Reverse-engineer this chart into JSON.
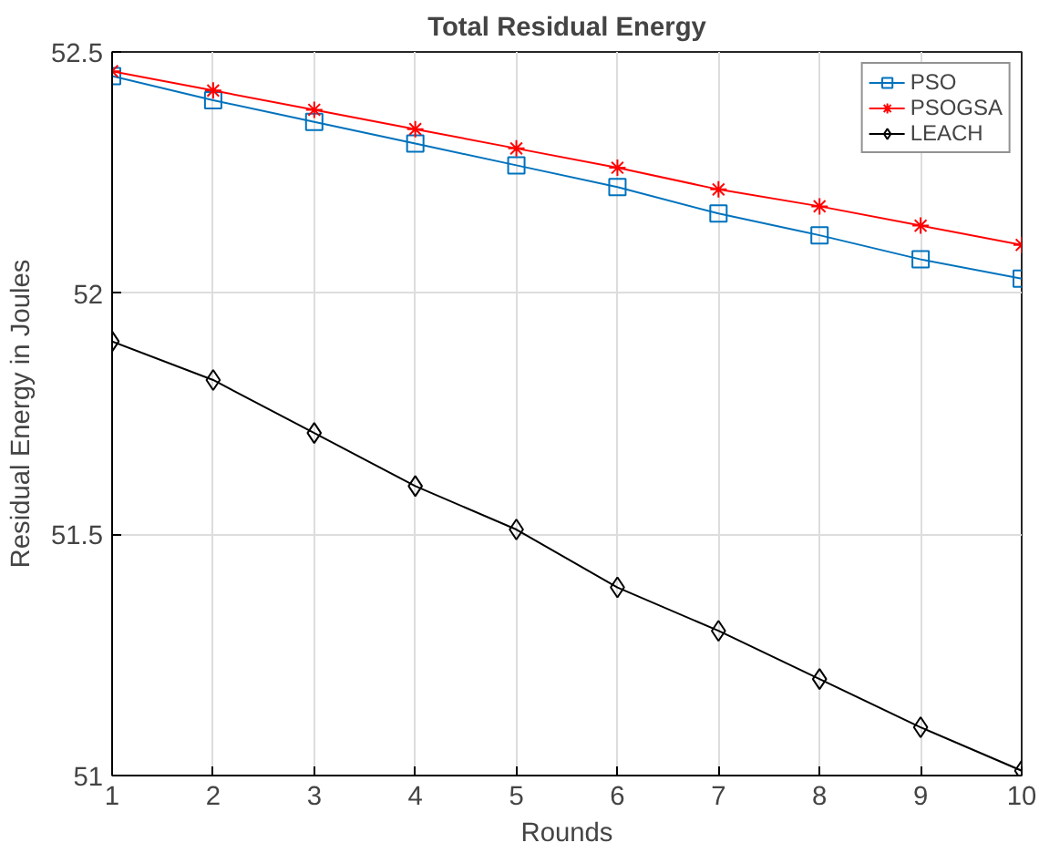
{
  "chart_data": {
    "type": "line",
    "title": "Total Residual Energy",
    "xlabel": "Rounds",
    "ylabel": "Residual Energy in Joules",
    "x": [
      1,
      2,
      3,
      4,
      5,
      6,
      7,
      8,
      9,
      10
    ],
    "series": [
      {
        "name": "PSO",
        "color": "#0072bd",
        "marker": "square",
        "values": [
          52.45,
          52.4,
          52.355,
          52.31,
          52.265,
          52.22,
          52.165,
          52.12,
          52.07,
          52.03
        ]
      },
      {
        "name": "PSOGSA",
        "color": "#ff0000",
        "marker": "cross",
        "values": [
          52.46,
          52.42,
          52.38,
          52.34,
          52.3,
          52.26,
          52.215,
          52.18,
          52.14,
          52.1
        ]
      },
      {
        "name": "LEACH",
        "color": "#000000",
        "marker": "diamond",
        "values": [
          51.9,
          51.82,
          51.71,
          51.6,
          51.51,
          51.39,
          51.3,
          51.2,
          51.1,
          51.01
        ]
      }
    ],
    "xlim": [
      1,
      10
    ],
    "xticks": [
      1,
      2,
      3,
      4,
      5,
      6,
      7,
      8,
      9,
      10
    ],
    "ylim": [
      51,
      52.5
    ],
    "yticks": [
      51,
      51.5,
      52,
      52.5
    ],
    "grid": true,
    "legend": "top right",
    "line_style": "solid"
  }
}
